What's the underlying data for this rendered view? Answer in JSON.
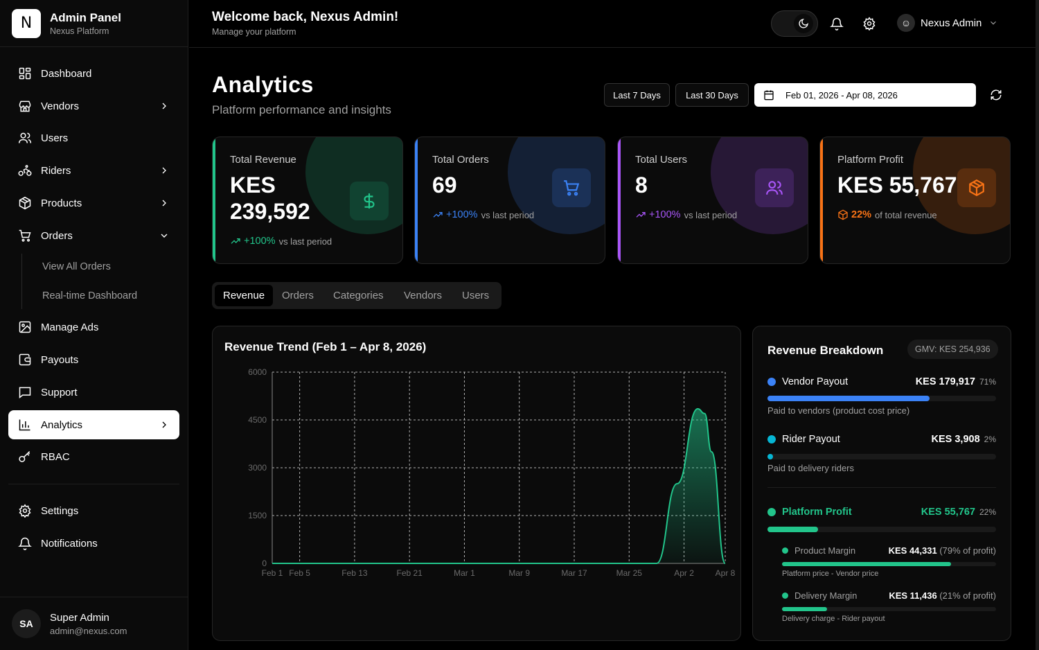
{
  "brand": {
    "logo": "N",
    "title": "Admin Panel",
    "subtitle": "Nexus Platform"
  },
  "nav": {
    "items": [
      {
        "label": "Dashboard",
        "icon": "dashboard-icon"
      },
      {
        "label": "Vendors",
        "icon": "store-icon"
      },
      {
        "label": "Users",
        "icon": "users-icon"
      },
      {
        "label": "Riders",
        "icon": "bike-icon"
      },
      {
        "label": "Products",
        "icon": "box-icon"
      },
      {
        "label": "Orders",
        "icon": "cart-icon"
      },
      {
        "label": "Manage Ads",
        "icon": "image-icon"
      },
      {
        "label": "Payouts",
        "icon": "wallet-icon"
      },
      {
        "label": "Support",
        "icon": "message-icon"
      },
      {
        "label": "Analytics",
        "icon": "bar-chart-icon"
      },
      {
        "label": "RBAC",
        "icon": "key-icon"
      }
    ],
    "orders_sub": [
      "View All Orders",
      "Real-time Dashboard"
    ],
    "bottom": [
      {
        "label": "Settings",
        "icon": "gear-icon"
      },
      {
        "label": "Notifications",
        "icon": "bell-icon"
      }
    ]
  },
  "current_user": {
    "initials": "SA",
    "name": "Super Admin",
    "email": "admin@nexus.com"
  },
  "header": {
    "welcome": "Welcome back, Nexus Admin!",
    "subtitle": "Manage your platform",
    "user_name": "Nexus Admin"
  },
  "page": {
    "title": "Analytics",
    "subtitle": "Platform performance and insights"
  },
  "filters": {
    "last7": "Last 7 Days",
    "last30": "Last 30 Days",
    "date_range": "Feb 01, 2026 - Apr 08, 2026"
  },
  "cards": [
    {
      "label": "Total Revenue",
      "value_line1": "KES",
      "value_line2": "239,592",
      "change": "+100%",
      "note": "vs last period",
      "color": "#22c58b",
      "icon": "dollar-icon"
    },
    {
      "label": "Total Orders",
      "value": "69",
      "change": "+100%",
      "note": "vs last period",
      "color": "#3b82f6",
      "icon": "cart-icon"
    },
    {
      "label": "Total Users",
      "value": "8",
      "change": "+100%",
      "note": "vs last period",
      "color": "#a855f7",
      "icon": "users-icon"
    },
    {
      "label": "Platform Profit",
      "value": "KES 55,767",
      "change": "22%",
      "note": "of total revenue",
      "color": "#f97316",
      "icon": "package-icon"
    }
  ],
  "tabs": [
    "Revenue",
    "Orders",
    "Categories",
    "Vendors",
    "Users"
  ],
  "chart_data": {
    "type": "area",
    "title": "Revenue Trend (Feb 1 – Apr 8, 2026)",
    "x_ticks": [
      "Feb 1",
      "Feb 5",
      "Feb 13",
      "Feb 21",
      "Mar 1",
      "Mar 9",
      "Mar 17",
      "Mar 25",
      "Apr 2",
      "Apr 8"
    ],
    "y_ticks": [
      0,
      1500,
      3000,
      4500,
      6000
    ],
    "ylim": [
      0,
      6000
    ],
    "series": [
      {
        "x": [
          "Feb 1",
          "Mar 29",
          "Apr 1",
          "Apr 4",
          "Apr 5",
          "Apr 6",
          "Apr 8"
        ],
        "values": [
          0,
          0,
          2500,
          4850,
          4700,
          3500,
          0
        ]
      }
    ],
    "grid": true,
    "color": "#22c58b"
  },
  "breakdown": {
    "title": "Revenue Breakdown",
    "gmv": "GMV: KES 254,936",
    "rows": [
      {
        "name": "Vendor Payout",
        "amount": "KES 179,917",
        "pct": "71%",
        "fraction": 0.71,
        "desc": "Paid to vendors (product cost price)",
        "color": "#3b82f6"
      },
      {
        "name": "Rider Payout",
        "amount": "KES 3,908",
        "pct": "2%",
        "fraction": 0.02,
        "desc": "Paid to delivery riders",
        "color": "#06b6d4"
      },
      {
        "name": "Platform Profit",
        "amount": "KES 55,767",
        "pct": "22%",
        "fraction": 0.22,
        "color": "#22c58b"
      }
    ],
    "sub": [
      {
        "name": "Product Margin",
        "amount": "KES 44,331",
        "note": "(79% of profit)",
        "fraction": 0.79,
        "desc": "Platform price - Vendor price"
      },
      {
        "name": "Delivery Margin",
        "amount": "KES 11,436",
        "note": "(21% of profit)",
        "fraction": 0.21,
        "desc": "Delivery charge - Rider payout"
      }
    ]
  }
}
